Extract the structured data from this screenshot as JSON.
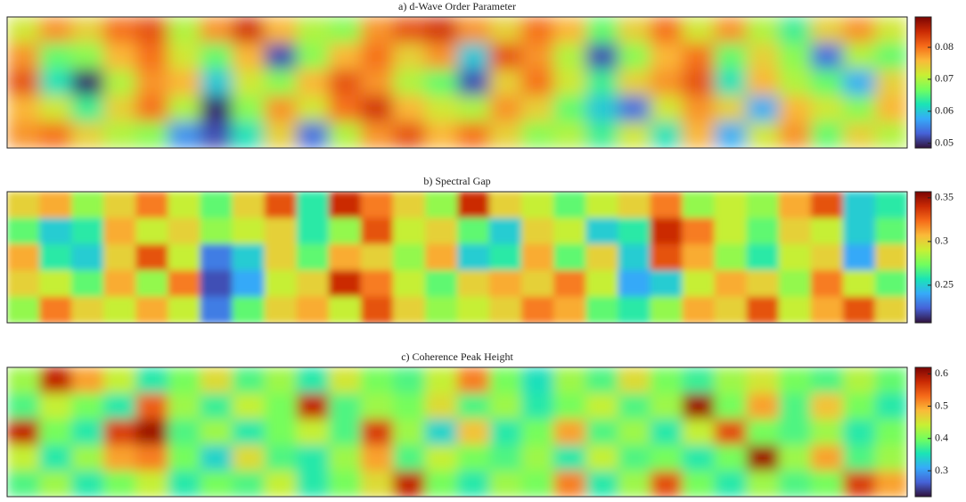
{
  "chart_data": [
    {
      "type": "heatmap",
      "title": "a) d-Wave Order Parameter",
      "colors": [
        "#30123b",
        "#4662d7",
        "#36aaf9",
        "#1ae4b6",
        "#72fe5e",
        "#c8ef34",
        "#faba39",
        "#f66b19",
        "#ca2a04",
        "#7a0403"
      ],
      "clim": [
        0.0485,
        0.0895
      ],
      "cticks": [
        0.05,
        0.06,
        0.07,
        0.08
      ],
      "z": [
        [
          0.072,
          0.078,
          0.074,
          0.08,
          0.082,
          0.07,
          0.078,
          0.084,
          0.076,
          0.07,
          0.068,
          0.078,
          0.082,
          0.084,
          0.078,
          0.074,
          0.08,
          0.076,
          0.066,
          0.074,
          0.08,
          0.072,
          0.078,
          0.07,
          0.064,
          0.074,
          0.078,
          0.072
        ],
        [
          0.078,
          0.066,
          0.068,
          0.076,
          0.08,
          0.072,
          0.066,
          0.076,
          0.052,
          0.068,
          0.076,
          0.08,
          0.074,
          0.078,
          0.06,
          0.082,
          0.078,
          0.07,
          0.052,
          0.068,
          0.076,
          0.08,
          0.066,
          0.074,
          0.068,
          0.054,
          0.07,
          0.066
        ],
        [
          0.082,
          0.062,
          0.05,
          0.07,
          0.078,
          0.076,
          0.06,
          0.072,
          0.068,
          0.076,
          0.082,
          0.078,
          0.07,
          0.066,
          0.052,
          0.074,
          0.08,
          0.072,
          0.064,
          0.074,
          0.078,
          0.082,
          0.062,
          0.076,
          0.07,
          0.066,
          0.058,
          0.074
        ],
        [
          0.076,
          0.072,
          0.064,
          0.074,
          0.08,
          0.07,
          0.05,
          0.068,
          0.078,
          0.072,
          0.08,
          0.084,
          0.076,
          0.072,
          0.07,
          0.078,
          0.074,
          0.066,
          0.06,
          0.054,
          0.072,
          0.078,
          0.074,
          0.058,
          0.076,
          0.072,
          0.068,
          0.076
        ],
        [
          0.078,
          0.08,
          0.074,
          0.07,
          0.068,
          0.056,
          0.052,
          0.062,
          0.074,
          0.054,
          0.07,
          0.078,
          0.082,
          0.076,
          0.08,
          0.074,
          0.068,
          0.07,
          0.064,
          0.072,
          0.062,
          0.076,
          0.058,
          0.072,
          0.078,
          0.066,
          0.074,
          0.07
        ]
      ]
    },
    {
      "type": "heatmap",
      "title": "b) Spectral Gap",
      "colors": [
        "#30123b",
        "#4662d7",
        "#36aaf9",
        "#1ae4b6",
        "#72fe5e",
        "#c8ef34",
        "#faba39",
        "#f66b19",
        "#ca2a04",
        "#7a0403"
      ],
      "clim": [
        0.207,
        0.357
      ],
      "cticks": [
        0.25,
        0.3,
        0.35
      ],
      "z": [
        [
          0.3,
          0.31,
          0.28,
          0.3,
          0.32,
          0.29,
          0.27,
          0.3,
          0.33,
          0.26,
          0.34,
          0.32,
          0.3,
          0.28,
          0.34,
          0.3,
          0.29,
          0.27,
          0.29,
          0.3,
          0.32,
          0.28,
          0.29,
          0.28,
          0.31,
          0.33,
          0.25,
          0.26
        ],
        [
          0.27,
          0.25,
          0.26,
          0.31,
          0.29,
          0.3,
          0.28,
          0.29,
          0.3,
          0.26,
          0.28,
          0.33,
          0.29,
          0.3,
          0.27,
          0.25,
          0.3,
          0.29,
          0.25,
          0.26,
          0.34,
          0.32,
          0.29,
          0.27,
          0.3,
          0.29,
          0.25,
          0.27
        ],
        [
          0.31,
          0.26,
          0.25,
          0.3,
          0.33,
          0.29,
          0.23,
          0.25,
          0.3,
          0.27,
          0.31,
          0.3,
          0.28,
          0.31,
          0.25,
          0.26,
          0.31,
          0.27,
          0.3,
          0.25,
          0.33,
          0.31,
          0.28,
          0.26,
          0.29,
          0.3,
          0.24,
          0.3
        ],
        [
          0.3,
          0.29,
          0.27,
          0.31,
          0.28,
          0.32,
          0.22,
          0.24,
          0.29,
          0.3,
          0.34,
          0.32,
          0.29,
          0.27,
          0.3,
          0.31,
          0.3,
          0.32,
          0.29,
          0.24,
          0.25,
          0.29,
          0.31,
          0.3,
          0.28,
          0.32,
          0.29,
          0.27
        ],
        [
          0.28,
          0.32,
          0.3,
          0.29,
          0.31,
          0.29,
          0.23,
          0.27,
          0.3,
          0.31,
          0.29,
          0.33,
          0.3,
          0.28,
          0.29,
          0.3,
          0.32,
          0.31,
          0.27,
          0.26,
          0.28,
          0.31,
          0.3,
          0.33,
          0.29,
          0.31,
          0.33,
          0.3
        ]
      ]
    },
    {
      "type": "heatmap",
      "title": "c) Coherence Peak Height",
      "colors": [
        "#30123b",
        "#4662d7",
        "#36aaf9",
        "#1ae4b6",
        "#72fe5e",
        "#c8ef34",
        "#faba39",
        "#f66b19",
        "#ca2a04",
        "#7a0403"
      ],
      "clim": [
        0.22,
        0.62
      ],
      "cticks": [
        0.3,
        0.4,
        0.5,
        0.6
      ],
      "z": [
        [
          0.42,
          0.58,
          0.5,
          0.44,
          0.36,
          0.4,
          0.46,
          0.38,
          0.42,
          0.36,
          0.45,
          0.4,
          0.38,
          0.44,
          0.52,
          0.4,
          0.35,
          0.42,
          0.38,
          0.46,
          0.4,
          0.37,
          0.42,
          0.45,
          0.4,
          0.38,
          0.43,
          0.39
        ],
        [
          0.38,
          0.44,
          0.4,
          0.36,
          0.54,
          0.42,
          0.37,
          0.44,
          0.4,
          0.58,
          0.38,
          0.42,
          0.4,
          0.46,
          0.38,
          0.42,
          0.36,
          0.4,
          0.44,
          0.38,
          0.42,
          0.6,
          0.4,
          0.5,
          0.38,
          0.48,
          0.4,
          0.36
        ],
        [
          0.58,
          0.4,
          0.36,
          0.56,
          0.6,
          0.38,
          0.42,
          0.36,
          0.4,
          0.44,
          0.38,
          0.56,
          0.42,
          0.34,
          0.48,
          0.36,
          0.4,
          0.5,
          0.38,
          0.42,
          0.36,
          0.44,
          0.55,
          0.4,
          0.38,
          0.42,
          0.36,
          0.4
        ],
        [
          0.44,
          0.36,
          0.42,
          0.5,
          0.52,
          0.4,
          0.34,
          0.46,
          0.38,
          0.36,
          0.42,
          0.5,
          0.38,
          0.44,
          0.4,
          0.38,
          0.42,
          0.36,
          0.44,
          0.38,
          0.4,
          0.36,
          0.4,
          0.6,
          0.42,
          0.5,
          0.38,
          0.42
        ],
        [
          0.38,
          0.42,
          0.36,
          0.4,
          0.44,
          0.36,
          0.4,
          0.38,
          0.44,
          0.36,
          0.4,
          0.46,
          0.58,
          0.4,
          0.36,
          0.42,
          0.4,
          0.52,
          0.36,
          0.42,
          0.55,
          0.4,
          0.36,
          0.42,
          0.38,
          0.4,
          0.56,
          0.5
        ]
      ]
    }
  ]
}
